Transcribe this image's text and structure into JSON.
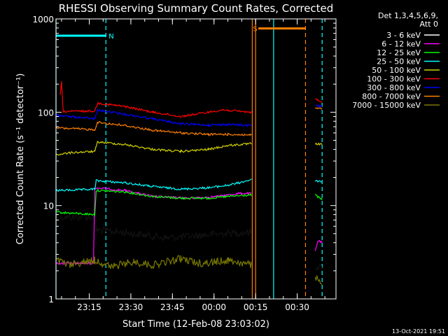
{
  "chart_data": {
    "type": "line",
    "title": "RHESSI Observing Summary Count Rates, Corrected",
    "xlabel": "Start Time (12-Feb-08 23:03:02)",
    "ylabel": "Corrected Count Rate (s⁻¹ detector⁻¹)",
    "y_scale": "log",
    "ylim": [
      1,
      1000
    ],
    "y_ticks": [
      1,
      10,
      100,
      1000
    ],
    "y_tick_labels": [
      "1",
      "10",
      "100",
      "1000"
    ],
    "x_ticks": [
      "23:15",
      "23:30",
      "23:45",
      "00:00",
      "00:15",
      "00:30"
    ],
    "x_tick_minutes": [
      12,
      27,
      42,
      57,
      72,
      87
    ],
    "xlim_minutes": [
      0,
      101
    ],
    "legend": {
      "header": [
        "Det 1,3,4,5,6,9,",
        "Att 0"
      ],
      "placement": "right"
    },
    "series": [
      {
        "name": "3 - 6 keV",
        "color": "#000000",
        "segments": [
          {
            "x": [
              0,
              14,
              14.5,
              28,
              40,
              52,
              60,
              70.5
            ],
            "y": [
              7.5,
              7.5,
              5.5,
              5.0,
              4.5,
              4.8,
              5.0,
              5.2
            ]
          },
          {
            "x": [
              93.5,
              96
            ],
            "y": [
              2.2,
              2.2
            ]
          }
        ]
      },
      {
        "name": "6 - 12 keV",
        "color": "#ff00ff",
        "segments": [
          {
            "x": [
              0,
              13.5,
              14,
              25,
              35,
              48,
              58,
              66,
              70.5
            ],
            "y": [
              2.4,
              2.4,
              15.5,
              14.5,
              12.5,
              12.0,
              12.5,
              13.5,
              13.5
            ]
          },
          {
            "x": [
              93.5,
              94.5,
              96
            ],
            "y": [
              3.2,
              4.2,
              4.0
            ]
          }
        ]
      },
      {
        "name": "12 - 25 keV",
        "color": "#00ff00",
        "segments": [
          {
            "x": [
              0,
              14,
              14.5,
              25,
              35,
              45,
              55,
              62,
              70.5
            ],
            "y": [
              8.5,
              8.0,
              14.5,
              14.0,
              12.5,
              12.0,
              12.0,
              12.5,
              13.0
            ]
          },
          {
            "x": [
              93.5,
              96
            ],
            "y": [
              13.0,
              11.5
            ]
          }
        ]
      },
      {
        "name": "25 - 50 keV",
        "color": "#00ffff",
        "segments": [
          {
            "x": [
              0,
              10,
              14,
              14.5,
              25,
              35,
              45,
              55,
              62,
              66,
              70.5
            ],
            "y": [
              14.5,
              14.8,
              15.0,
              18.5,
              17.5,
              16.0,
              15.0,
              15.5,
              16.5,
              17.5,
              19.0
            ]
          },
          {
            "x": [
              93.5,
              96
            ],
            "y": [
              18.5,
              18.0
            ]
          }
        ]
      },
      {
        "name": "50 - 100 keV",
        "color": "#d0d000",
        "segments": [
          {
            "x": [
              0,
              6,
              14,
              15,
              25,
              35,
              45,
              55,
              62,
              70.5
            ],
            "y": [
              35,
              37,
              38,
              48,
              45,
              40,
              38,
              40,
              44,
              46
            ]
          },
          {
            "x": [
              93.5,
              96
            ],
            "y": [
              46,
              45
            ]
          }
        ]
      },
      {
        "name": "100 - 300 keV",
        "color": "#ff0000",
        "segments": [
          {
            "x": [
              1.5,
              2,
              2.6,
              3,
              14,
              15,
              25,
              35,
              45,
              55,
              60,
              70.5
            ],
            "y": [
              150,
              210,
              100,
              102,
              103,
              125,
              115,
              100,
              90,
              100,
              106,
              100
            ]
          },
          {
            "x": [
              93.5,
              96
            ],
            "y": [
              140,
              125
            ]
          }
        ]
      },
      {
        "name": "300 - 800 keV",
        "color": "#0000ff",
        "segments": [
          {
            "x": [
              0,
              1,
              14,
              15,
              25,
              35,
              45,
              55,
              62,
              70.5
            ],
            "y": [
              95,
              92,
              85,
              105,
              95,
              85,
              75,
              73,
              74,
              72
            ]
          },
          {
            "x": [
              93.5,
              96
            ],
            "y": [
              120,
              115
            ]
          }
        ]
      },
      {
        "name": "800 - 7000 keV",
        "color": "#ff8000",
        "segments": [
          {
            "x": [
              0,
              14,
              15,
              25,
              35,
              45,
              55,
              62,
              70.5
            ],
            "y": [
              68,
              65,
              78,
              72,
              64,
              60,
              58,
              58,
              57
            ]
          },
          {
            "x": [
              93.5,
              96
            ],
            "y": [
              112,
              108
            ]
          }
        ]
      },
      {
        "name": "7000 - 15000 keV",
        "color": "#7a7a00",
        "segments": [
          {
            "x": [
              0,
              5,
              10,
              14,
              20,
              28,
              35,
              45,
              52,
              58,
              62,
              70.5
            ],
            "y": [
              2.6,
              2.3,
              2.5,
              2.6,
              2.2,
              2.5,
              2.3,
              2.7,
              2.4,
              2.5,
              2.6,
              2.3
            ]
          },
          {
            "x": [
              93.5,
              96
            ],
            "y": [
              1.7,
              1.5
            ]
          }
        ]
      }
    ],
    "flags": [
      {
        "label": "N",
        "color": "#00ffff",
        "bar_start": 0,
        "bar_end": 18,
        "y": 660,
        "label_x": 19
      },
      {
        "label": "S",
        "color": "#ff8000",
        "bar_start": 73,
        "bar_end": 90,
        "y": 790,
        "label_x": 71
      }
    ],
    "markers": [
      {
        "x": 0,
        "color": "#00ffff",
        "style": "solid"
      },
      {
        "x": 18,
        "color": "#00ffff",
        "style": "dashed"
      },
      {
        "x": 70.8,
        "color": "#ff8000",
        "style": "solid"
      },
      {
        "x": 72,
        "color": "#ff8000",
        "style": "solid"
      },
      {
        "x": 78.5,
        "color": "#00ffff",
        "style": "solid"
      },
      {
        "x": 90,
        "color": "#ff8000",
        "style": "dashed"
      },
      {
        "x": 96,
        "color": "#00ffff",
        "style": "dashed"
      }
    ],
    "footer_date": "13-Oct-2021 19:51"
  }
}
